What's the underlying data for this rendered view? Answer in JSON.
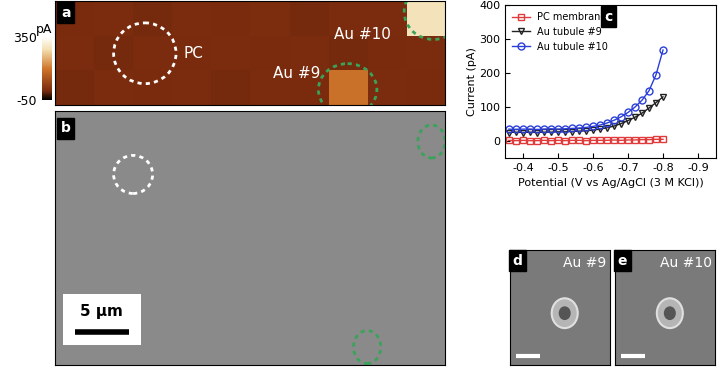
{
  "chart_data": {
    "type": "line",
    "panel_label": "c",
    "x_label": "Potential (V vs Ag/AgCl (3 M KCl))",
    "y_label": "Current (pA)",
    "xlim": [
      -0.35,
      -0.95
    ],
    "xticks": [
      -0.4,
      -0.5,
      -0.6,
      -0.7,
      -0.8,
      -0.9
    ],
    "ylim": [
      -50,
      400
    ],
    "yticks": [
      0,
      100,
      200,
      300,
      400
    ],
    "legend": "upper left",
    "x": [
      -0.36,
      -0.38,
      -0.4,
      -0.42,
      -0.44,
      -0.46,
      -0.48,
      -0.5,
      -0.52,
      -0.54,
      -0.56,
      -0.58,
      -0.6,
      -0.62,
      -0.64,
      -0.66,
      -0.68,
      -0.7,
      -0.72,
      -0.74,
      -0.76,
      -0.78,
      -0.8
    ],
    "series": [
      {
        "name": "PC membrane",
        "color": "#e03a3a",
        "marker": "square",
        "line_style": "solid",
        "values": [
          2,
          1,
          2,
          1,
          1,
          2,
          1,
          2,
          1,
          2,
          2,
          1,
          2,
          2,
          2,
          3,
          2,
          3,
          3,
          4,
          4,
          5,
          5
        ]
      },
      {
        "name": "Au tubule #9",
        "color": "#222222",
        "marker": "triangle_down",
        "line_style": "solid",
        "values": [
          25,
          26,
          25,
          26,
          25,
          26,
          26,
          27,
          27,
          28,
          29,
          30,
          32,
          35,
          39,
          44,
          51,
          60,
          70,
          82,
          97,
          113,
          130
        ]
      },
      {
        "name": "Au tubule #10",
        "color": "#2b3fd8",
        "marker": "circle",
        "line_style": "solid",
        "values": [
          35,
          34,
          35,
          35,
          34,
          35,
          36,
          35,
          36,
          37,
          38,
          40,
          43,
          47,
          53,
          61,
          71,
          84,
          100,
          120,
          148,
          195,
          268
        ]
      }
    ]
  },
  "current_map": {
    "type": "heatmap",
    "panel_label": "a",
    "cells": [
      [
        10,
        12,
        9,
        11,
        10,
        13,
        9,
        11,
        12,
        280
      ],
      [
        11,
        9,
        12,
        10,
        12,
        10,
        11,
        9,
        10,
        12
      ],
      [
        9,
        11,
        10,
        12,
        9,
        11,
        10,
        140,
        11,
        10
      ]
    ],
    "colorbar": {
      "label": "pA",
      "range": [
        -50,
        350
      ],
      "ticks": [
        -50,
        350
      ]
    },
    "annotations": [
      "PC",
      "Au #10",
      "Au #9"
    ]
  },
  "sem_overview": {
    "panel_label": "b",
    "scale_bar": "5 μm"
  },
  "sem_details": [
    {
      "panel_label": "d",
      "label": "Au #9"
    },
    {
      "panel_label": "e",
      "label": "Au #10"
    }
  ]
}
